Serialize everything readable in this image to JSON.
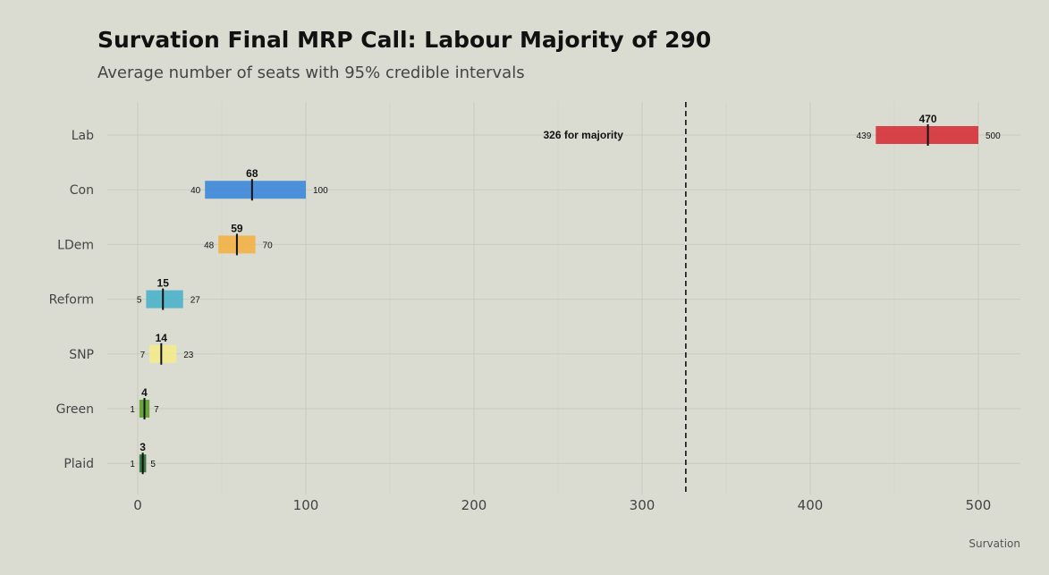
{
  "chart_data": {
    "type": "bar",
    "title": "Survation Final MRP Call: Labour Majority of 290",
    "subtitle": "Average number of seats with 95% credible intervals",
    "caption": "Survation",
    "xlim": [
      0,
      520
    ],
    "xticks": [
      0,
      100,
      200,
      300,
      400,
      500
    ],
    "grid": true,
    "categories": [
      "Lab",
      "Con",
      "LDem",
      "Reform",
      "SNP",
      "Green",
      "Plaid"
    ],
    "series": [
      {
        "values": [
          470,
          68,
          59,
          15,
          14,
          4,
          3
        ],
        "lower": [
          439,
          40,
          48,
          5,
          7,
          1,
          1
        ],
        "upper": [
          500,
          100,
          70,
          27,
          23,
          7,
          5
        ],
        "colors": [
          "#d7333c",
          "#3f89d8",
          "#f2b248",
          "#4fb2ca",
          "#f3ea8c",
          "#5f9e2f",
          "#2f6b3a"
        ]
      }
    ],
    "reference_line": {
      "value": 326,
      "label": "326 for majority"
    }
  }
}
